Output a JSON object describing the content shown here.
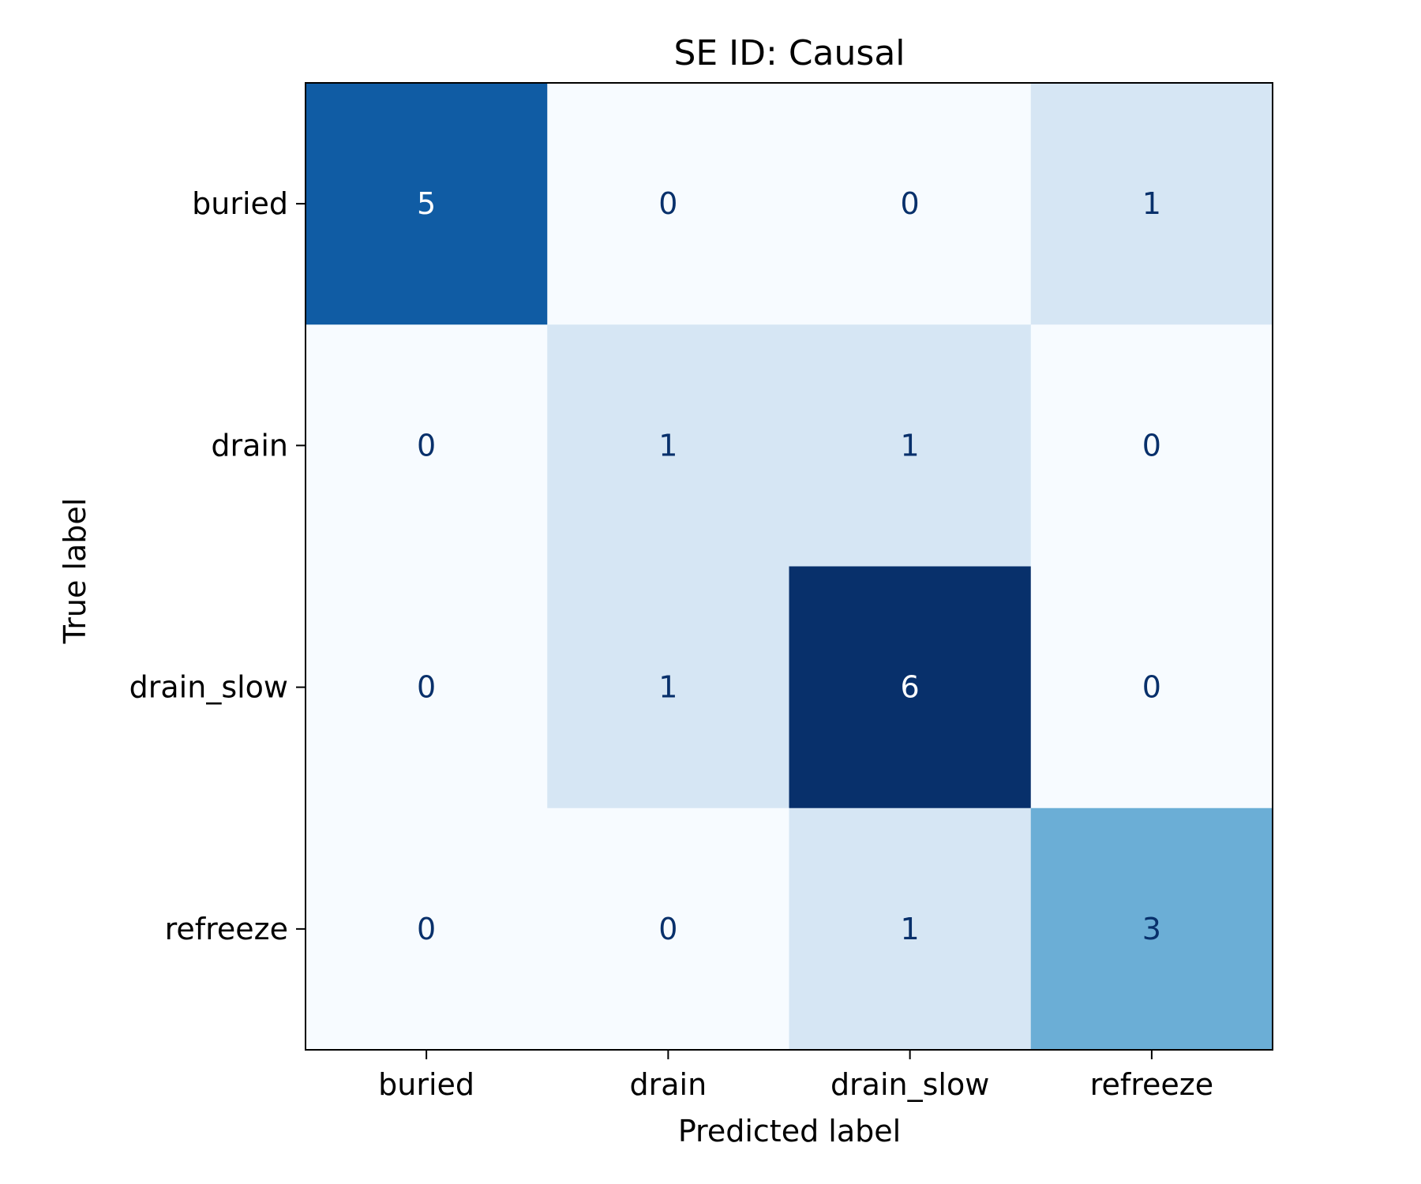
{
  "chart_data": {
    "type": "heatmap",
    "title": "SE ID: Causal",
    "xlabel": "Predicted label",
    "ylabel": "True label",
    "x_categories": [
      "buried",
      "drain",
      "drain_slow",
      "refreeze"
    ],
    "y_categories": [
      "buried",
      "drain",
      "drain_slow",
      "refreeze"
    ],
    "values": [
      [
        5,
        0,
        0,
        1
      ],
      [
        0,
        1,
        1,
        0
      ],
      [
        0,
        1,
        6,
        0
      ],
      [
        0,
        0,
        1,
        3
      ]
    ],
    "colormap": "Blues",
    "colorbar": false
  }
}
